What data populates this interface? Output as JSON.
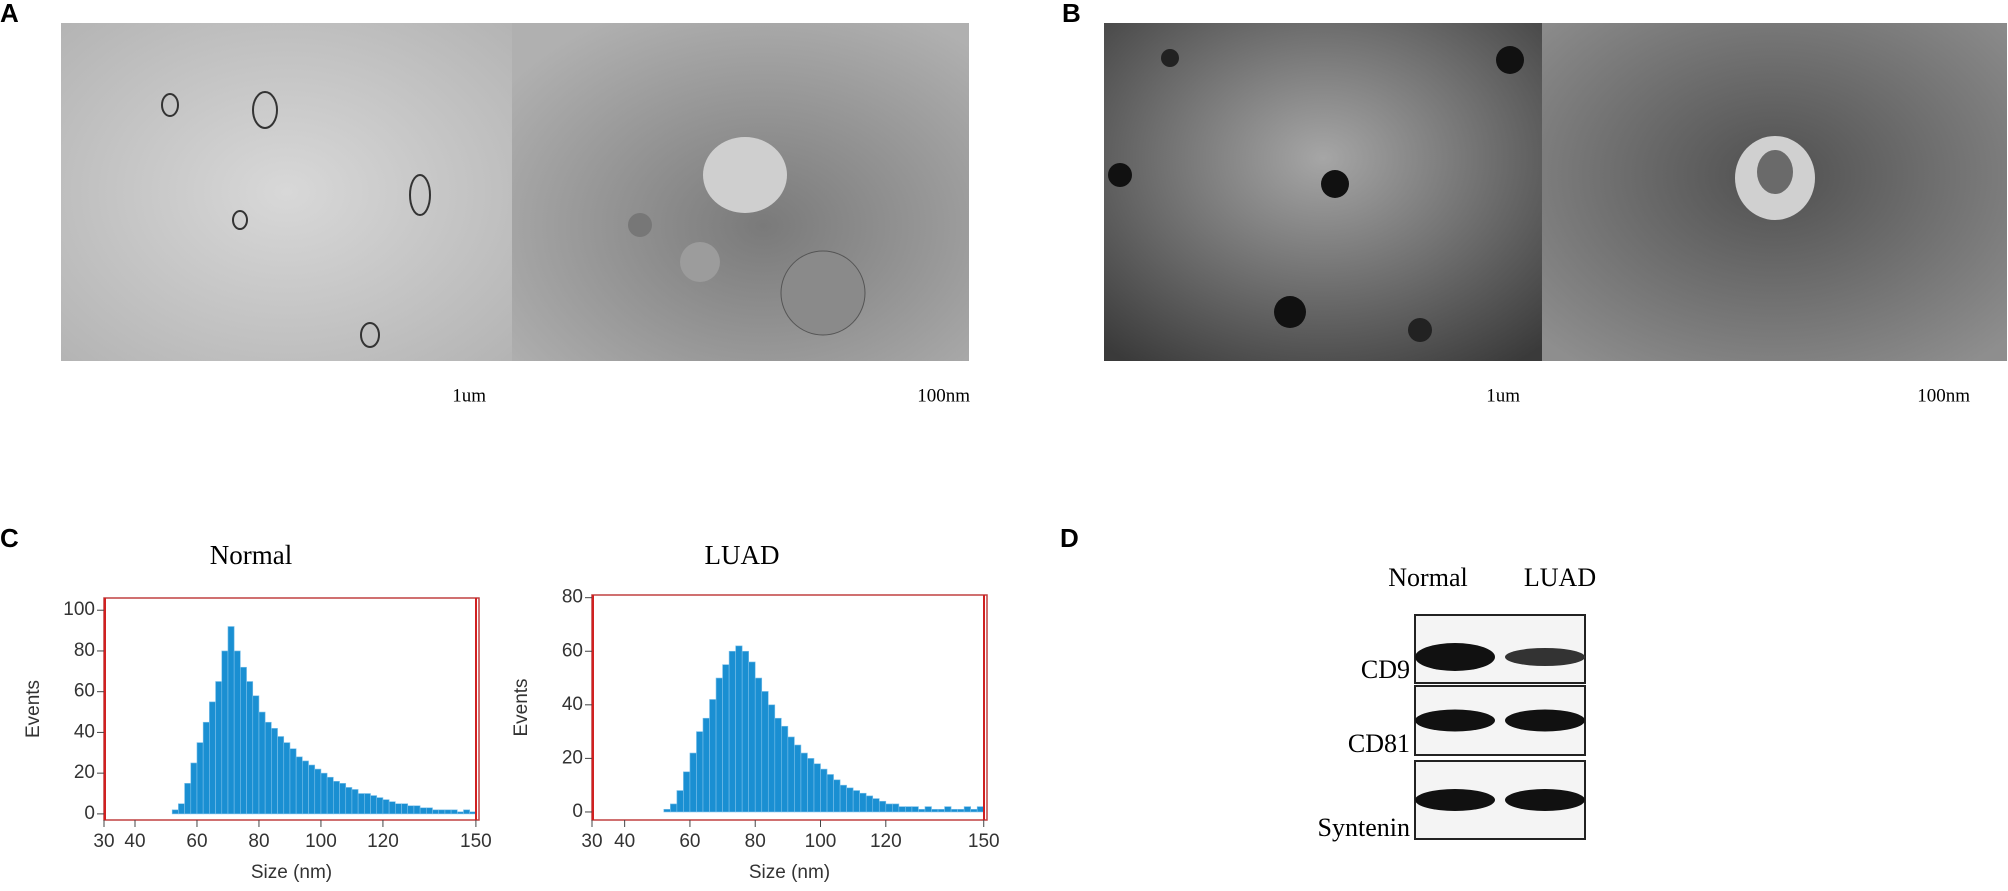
{
  "panels": {
    "A": {
      "label": "A",
      "scales": [
        "1um",
        "100nm"
      ]
    },
    "B": {
      "label": "B",
      "scales": [
        "1um",
        "100nm"
      ]
    },
    "C": {
      "label": "C"
    },
    "D": {
      "label": "D",
      "columns": [
        "Normal",
        "LUAD"
      ],
      "rows": [
        "CD9",
        "CD81",
        "Syntenin"
      ]
    }
  },
  "chart_data": [
    {
      "type": "histogram",
      "title": "Normal",
      "x_label": "Size (nm)",
      "y_label": "Events",
      "color": "#1a8fd2",
      "bins": [
        30,
        32,
        34,
        36,
        38,
        40,
        42,
        44,
        46,
        48,
        50,
        52,
        54,
        56,
        58,
        60,
        62,
        64,
        66,
        68,
        70,
        72,
        74,
        76,
        78,
        80,
        82,
        84,
        86,
        88,
        90,
        92,
        94,
        96,
        98,
        100,
        102,
        104,
        106,
        108,
        110,
        112,
        114,
        116,
        118,
        120,
        122,
        124,
        126,
        128,
        130,
        132,
        134,
        136,
        138,
        140,
        142,
        144,
        146,
        148,
        150
      ],
      "counts": [
        0,
        0,
        0,
        0,
        0,
        0,
        0,
        0,
        0,
        0,
        0,
        2,
        5,
        15,
        25,
        35,
        45,
        55,
        65,
        80,
        92,
        80,
        72,
        65,
        58,
        50,
        45,
        42,
        38,
        35,
        32,
        28,
        26,
        24,
        22,
        20,
        18,
        16,
        15,
        13,
        12,
        10,
        10,
        9,
        8,
        7,
        6,
        5,
        5,
        4,
        4,
        3,
        3,
        2,
        2,
        2,
        2,
        1,
        2,
        1
      ],
      "xlim": [
        30,
        151
      ],
      "ylim": [
        -3,
        106
      ],
      "xticks": [
        30,
        40,
        60,
        80,
        100,
        120,
        150
      ],
      "yticks": [
        0,
        20,
        40,
        60,
        80,
        100
      ]
    },
    {
      "type": "histogram",
      "title": "LUAD",
      "x_label": "Size (nm)",
      "y_label": "Events",
      "color": "#1a8fd2",
      "bins": [
        30,
        32,
        34,
        36,
        38,
        40,
        42,
        44,
        46,
        48,
        50,
        52,
        54,
        56,
        58,
        60,
        62,
        64,
        66,
        68,
        70,
        72,
        74,
        76,
        78,
        80,
        82,
        84,
        86,
        88,
        90,
        92,
        94,
        96,
        98,
        100,
        102,
        104,
        106,
        108,
        110,
        112,
        114,
        116,
        118,
        120,
        122,
        124,
        126,
        128,
        130,
        132,
        134,
        136,
        138,
        140,
        142,
        144,
        146,
        148,
        150
      ],
      "counts": [
        0,
        0,
        0,
        0,
        0,
        0,
        0,
        0,
        0,
        0,
        0,
        1,
        3,
        8,
        15,
        22,
        30,
        35,
        42,
        50,
        55,
        60,
        62,
        60,
        56,
        50,
        45,
        40,
        35,
        32,
        28,
        25,
        22,
        20,
        18,
        16,
        14,
        12,
        10,
        9,
        8,
        7,
        6,
        5,
        4,
        3,
        3,
        2,
        2,
        2,
        1,
        2,
        1,
        1,
        2,
        1,
        1,
        2,
        1,
        2
      ],
      "xlim": [
        30,
        151
      ],
      "ylim": [
        -3,
        81
      ],
      "xticks": [
        30,
        40,
        60,
        80,
        100,
        120,
        150
      ],
      "yticks": [
        0,
        20,
        40,
        60,
        80
      ]
    }
  ]
}
